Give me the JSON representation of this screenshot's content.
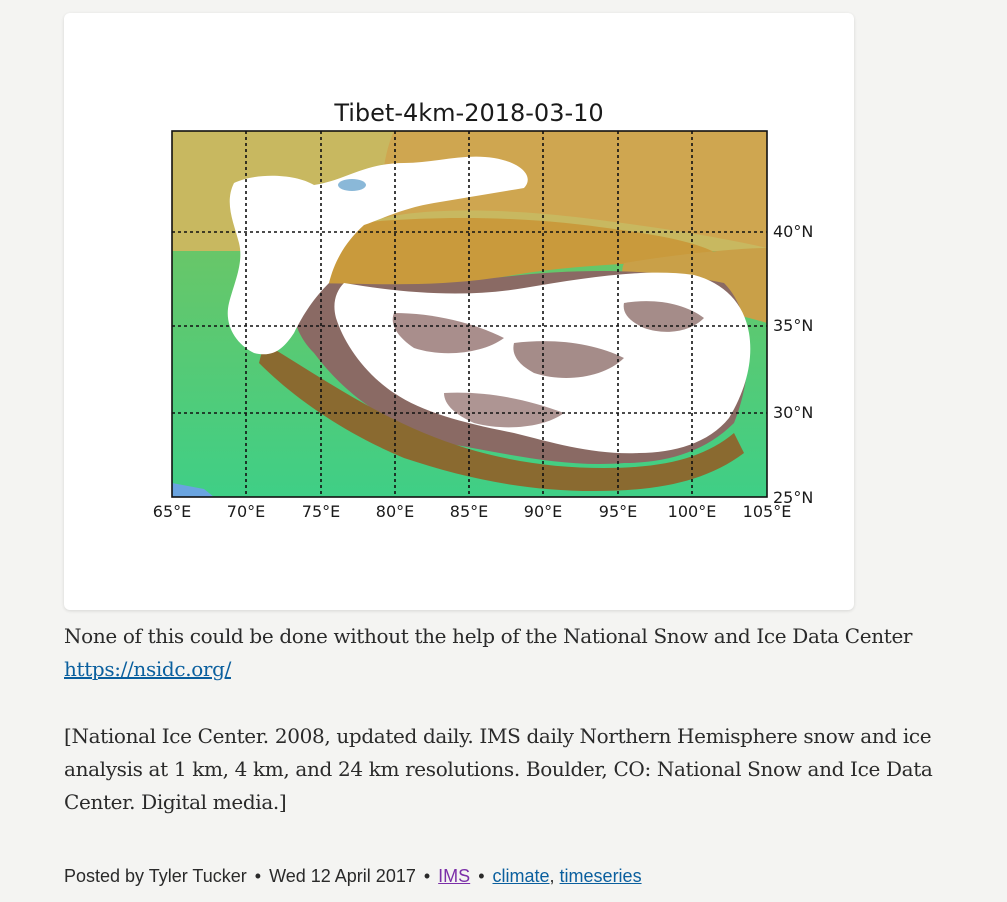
{
  "figure": {
    "title": "Tibet-4km-2018-03-10",
    "lon_ticks": [
      "65°E",
      "70°E",
      "75°E",
      "80°E",
      "85°E",
      "90°E",
      "95°E",
      "100°E",
      "105°E"
    ],
    "lat_ticks": [
      "40°N",
      "35°N",
      "30°N",
      "25°N"
    ],
    "colors": {
      "frame": "#111111",
      "desert": "#c99a3c",
      "lowland": "#4fc07a",
      "snow": "#ffffff",
      "highland": "#7a5a5a"
    }
  },
  "body": {
    "para1_text": "None of this could be done without the help of the National Snow and Ice Data Center",
    "para1_link": "https://nsidc.org/",
    "para2_text": "[National Ice Center. 2008, updated daily. IMS daily Northern Hemisphere snow and ice analysis at 1 km, 4 km, and 24 km resolutions. Boulder, CO: National Snow and Ice Data Center. Digital media.]"
  },
  "meta": {
    "posted_by": "Posted by Tyler Tucker",
    "separator": "•",
    "date": "Wed 12 April 2017",
    "category": "IMS",
    "tags": [
      "climate",
      "timeseries"
    ],
    "tag_separator": ","
  }
}
